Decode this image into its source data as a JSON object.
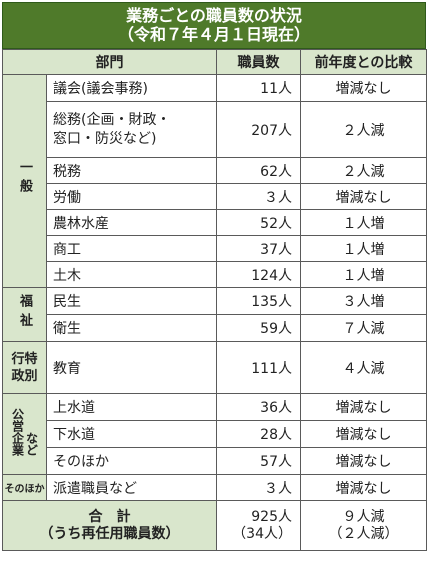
{
  "title_line1": "業務ごとの職員数の状況",
  "title_line2": "（令和７年４月１日現在）",
  "headers": {
    "dept": "部門",
    "staff": "職員数",
    "compare": "前年度との比較"
  },
  "groups": {
    "general": "一般",
    "welfare": "福祉",
    "admin_line1": "行特",
    "admin_line2": "政別",
    "enterprise_line1": "公営企業",
    "enterprise_line2": "など",
    "other": "そのほか"
  },
  "rows": [
    {
      "dept": "議会(議会事務)",
      "count": "11人",
      "diff": "増減なし"
    },
    {
      "dept": "総務(企画・財政・",
      "dept2": "窓口・防災など)",
      "count": "207人",
      "diff": "２人減"
    },
    {
      "dept": "税務",
      "count": "62人",
      "diff": "２人減"
    },
    {
      "dept": "労働",
      "count": "３人",
      "diff": "増減なし"
    },
    {
      "dept": "農林水産",
      "count": "52人",
      "diff": "１人増"
    },
    {
      "dept": "商工",
      "count": "37人",
      "diff": "１人増"
    },
    {
      "dept": "土木",
      "count": "124人",
      "diff": "１人増"
    },
    {
      "dept": "民生",
      "count": "135人",
      "diff": "３人増"
    },
    {
      "dept": "衛生",
      "count": "59人",
      "diff": "７人減"
    },
    {
      "dept": "教育",
      "count": "111人",
      "diff": "４人減"
    },
    {
      "dept": "上水道",
      "count": "36人",
      "diff": "増減なし"
    },
    {
      "dept": "下水道",
      "count": "28人",
      "diff": "増減なし"
    },
    {
      "dept": "そのほか",
      "count": "57人",
      "diff": "増減なし"
    },
    {
      "dept": "派遣職員など",
      "count": "３人",
      "diff": "増減なし"
    }
  ],
  "total": {
    "label1": "合　計",
    "label2": "（うち再任用職員数）",
    "count1": "925人",
    "count2": "（34人）",
    "diff1": "９人減",
    "diff2": "（２人減）"
  }
}
